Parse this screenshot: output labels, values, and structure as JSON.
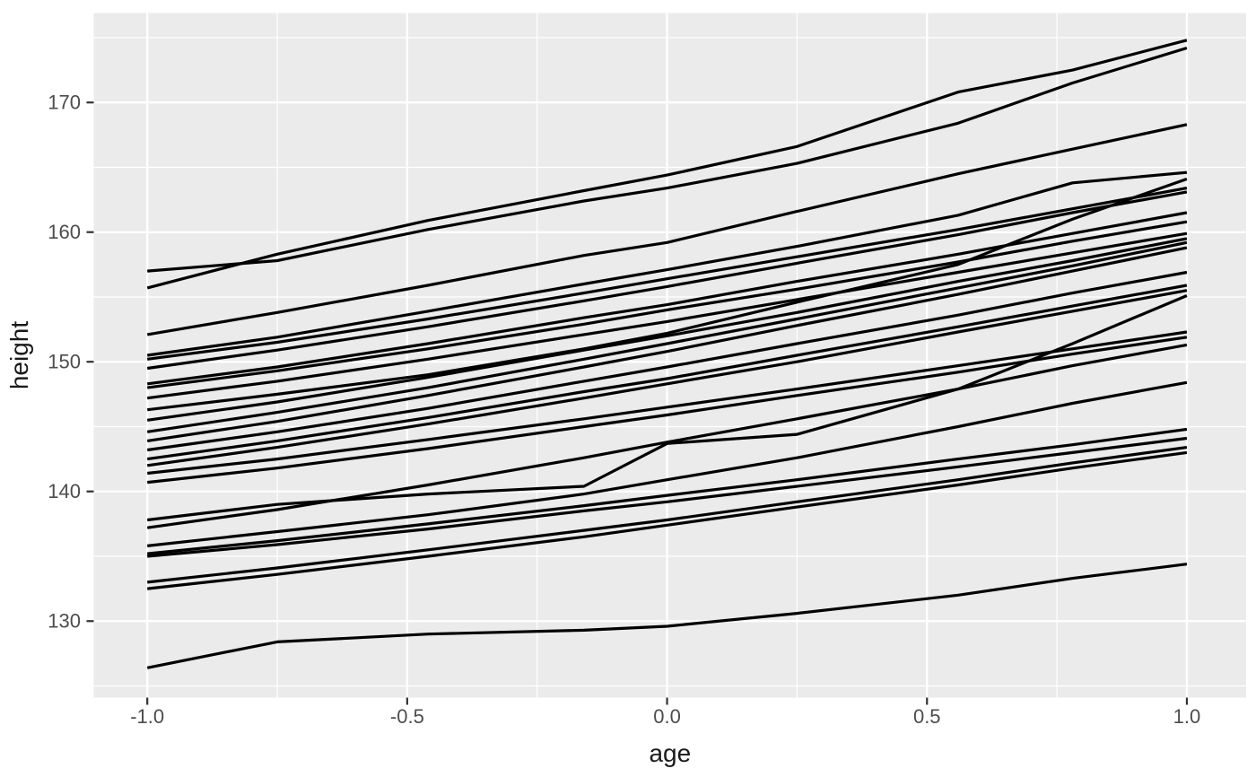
{
  "figure": {
    "title": "",
    "xlabel": "age",
    "ylabel": "height"
  },
  "chart_data": {
    "type": "line",
    "title": "",
    "xlabel": "age",
    "ylabel": "height",
    "legend": "none",
    "grid": true,
    "panel_bg": "#EBEBEB",
    "grid_color": "#FFFFFF",
    "line_color": "#000000",
    "axis_text_color": "#4D4D4D",
    "axis_title_color": "#1A1A1A",
    "tick_mark_color": "#333333",
    "xlim": [
      -1.103,
      1.114
    ],
    "ylim": [
      124.1,
      176.9
    ],
    "x_ticks": [
      {
        "v": -1.0,
        "label": "-1.0"
      },
      {
        "v": -0.5,
        "label": "-0.5"
      },
      {
        "v": 0.0,
        "label": "0.0"
      },
      {
        "v": 0.5,
        "label": "0.5"
      },
      {
        "v": 1.0,
        "label": "1.0"
      }
    ],
    "y_ticks": [
      {
        "v": 130,
        "label": "130"
      },
      {
        "v": 140,
        "label": "140"
      },
      {
        "v": 150,
        "label": "150"
      },
      {
        "v": 160,
        "label": "160"
      },
      {
        "v": 170,
        "label": "170"
      }
    ],
    "x_minor": [
      -0.75,
      -0.25,
      0.25,
      0.75
    ],
    "y_minor": [
      125,
      135,
      145,
      155,
      165,
      175
    ],
    "x": [
      -1.0,
      -0.75,
      -0.46,
      -0.16,
      0.0,
      0.25,
      0.56,
      0.78,
      1.0
    ],
    "series": [
      {
        "name": "line-01",
        "values": [
          157.0,
          157.8,
          160.2,
          162.4,
          163.4,
          165.3,
          168.4,
          171.5,
          174.2
        ]
      },
      {
        "name": "line-02",
        "values": [
          155.7,
          158.3,
          160.9,
          163.2,
          164.4,
          166.6,
          170.8,
          172.5,
          174.8
        ]
      },
      {
        "name": "line-03",
        "values": [
          152.1,
          153.8,
          155.9,
          158.2,
          159.2,
          161.6,
          164.5,
          166.4,
          168.3
        ]
      },
      {
        "name": "line-04",
        "values": [
          150.5,
          151.9,
          153.9,
          156.0,
          157.1,
          158.9,
          161.3,
          163.8,
          164.6
        ]
      },
      {
        "name": "line-05",
        "values": [
          150.2,
          151.5,
          153.3,
          155.3,
          156.4,
          158.1,
          160.2,
          161.8,
          163.4
        ]
      },
      {
        "name": "line-06",
        "values": [
          149.5,
          150.9,
          152.7,
          154.7,
          155.8,
          157.6,
          159.8,
          161.5,
          163.1
        ]
      },
      {
        "name": "line-07",
        "values": [
          148.3,
          149.6,
          151.4,
          153.4,
          154.4,
          156.2,
          158.3,
          159.9,
          161.5
        ]
      },
      {
        "name": "line-08",
        "values": [
          148.0,
          149.3,
          151.0,
          152.9,
          154.0,
          155.6,
          157.7,
          159.3,
          160.8
        ]
      },
      {
        "name": "line-09",
        "values": [
          147.2,
          148.5,
          150.2,
          152.1,
          153.1,
          154.8,
          156.9,
          158.4,
          159.9
        ]
      },
      {
        "name": "line-10",
        "values": [
          146.3,
          147.5,
          149.0,
          151.0,
          152.2,
          154.6,
          157.5,
          161.0,
          164.1
        ]
      },
      {
        "name": "line-11",
        "values": [
          145.5,
          146.9,
          148.8,
          150.9,
          152.0,
          153.8,
          156.2,
          157.8,
          159.5
        ]
      },
      {
        "name": "line-12",
        "values": [
          144.6,
          146.1,
          148.0,
          150.2,
          151.4,
          153.3,
          155.7,
          157.4,
          159.2
        ]
      },
      {
        "name": "line-13",
        "values": [
          143.9,
          145.4,
          147.4,
          149.6,
          150.8,
          152.8,
          155.2,
          157.0,
          158.8
        ]
      },
      {
        "name": "line-14",
        "values": [
          143.2,
          144.6,
          146.4,
          148.5,
          149.6,
          151.4,
          153.6,
          155.3,
          156.9
        ]
      },
      {
        "name": "line-15",
        "values": [
          142.5,
          143.9,
          145.7,
          147.7,
          148.7,
          150.5,
          152.7,
          154.3,
          155.9
        ]
      },
      {
        "name": "line-16",
        "values": [
          142.0,
          143.4,
          145.2,
          147.2,
          148.3,
          150.0,
          152.3,
          153.9,
          155.5
        ]
      },
      {
        "name": "line-17",
        "values": [
          141.4,
          142.5,
          144.0,
          145.6,
          146.5,
          147.9,
          149.7,
          151.0,
          152.3
        ]
      },
      {
        "name": "line-18",
        "values": [
          140.7,
          141.8,
          143.3,
          145.0,
          145.9,
          147.4,
          149.2,
          150.6,
          151.9
        ]
      },
      {
        "name": "line-19",
        "values": [
          137.8,
          139.0,
          139.8,
          140.4,
          143.7,
          144.4,
          147.9,
          151.4,
          155.1
        ]
      },
      {
        "name": "line-20",
        "values": [
          137.2,
          138.6,
          140.5,
          142.6,
          143.8,
          145.6,
          147.9,
          149.7,
          151.3
        ]
      },
      {
        "name": "line-21",
        "values": [
          135.8,
          136.9,
          138.2,
          139.8,
          140.9,
          142.6,
          145.0,
          146.8,
          148.4
        ]
      },
      {
        "name": "line-22",
        "values": [
          135.2,
          136.2,
          137.5,
          138.9,
          139.7,
          140.9,
          142.5,
          143.6,
          144.8
        ]
      },
      {
        "name": "line-23",
        "values": [
          135.0,
          135.9,
          137.1,
          138.5,
          139.2,
          140.4,
          141.9,
          143.0,
          144.1
        ]
      },
      {
        "name": "line-24",
        "values": [
          133.0,
          134.1,
          135.5,
          137.0,
          137.8,
          139.2,
          140.9,
          142.2,
          143.4
        ]
      },
      {
        "name": "line-25",
        "values": [
          132.5,
          133.6,
          135.0,
          136.5,
          137.4,
          138.8,
          140.5,
          141.8,
          143.0
        ]
      },
      {
        "name": "line-26",
        "values": [
          126.4,
          128.4,
          129.0,
          129.3,
          129.6,
          130.6,
          132.0,
          133.3,
          134.4
        ]
      }
    ]
  }
}
